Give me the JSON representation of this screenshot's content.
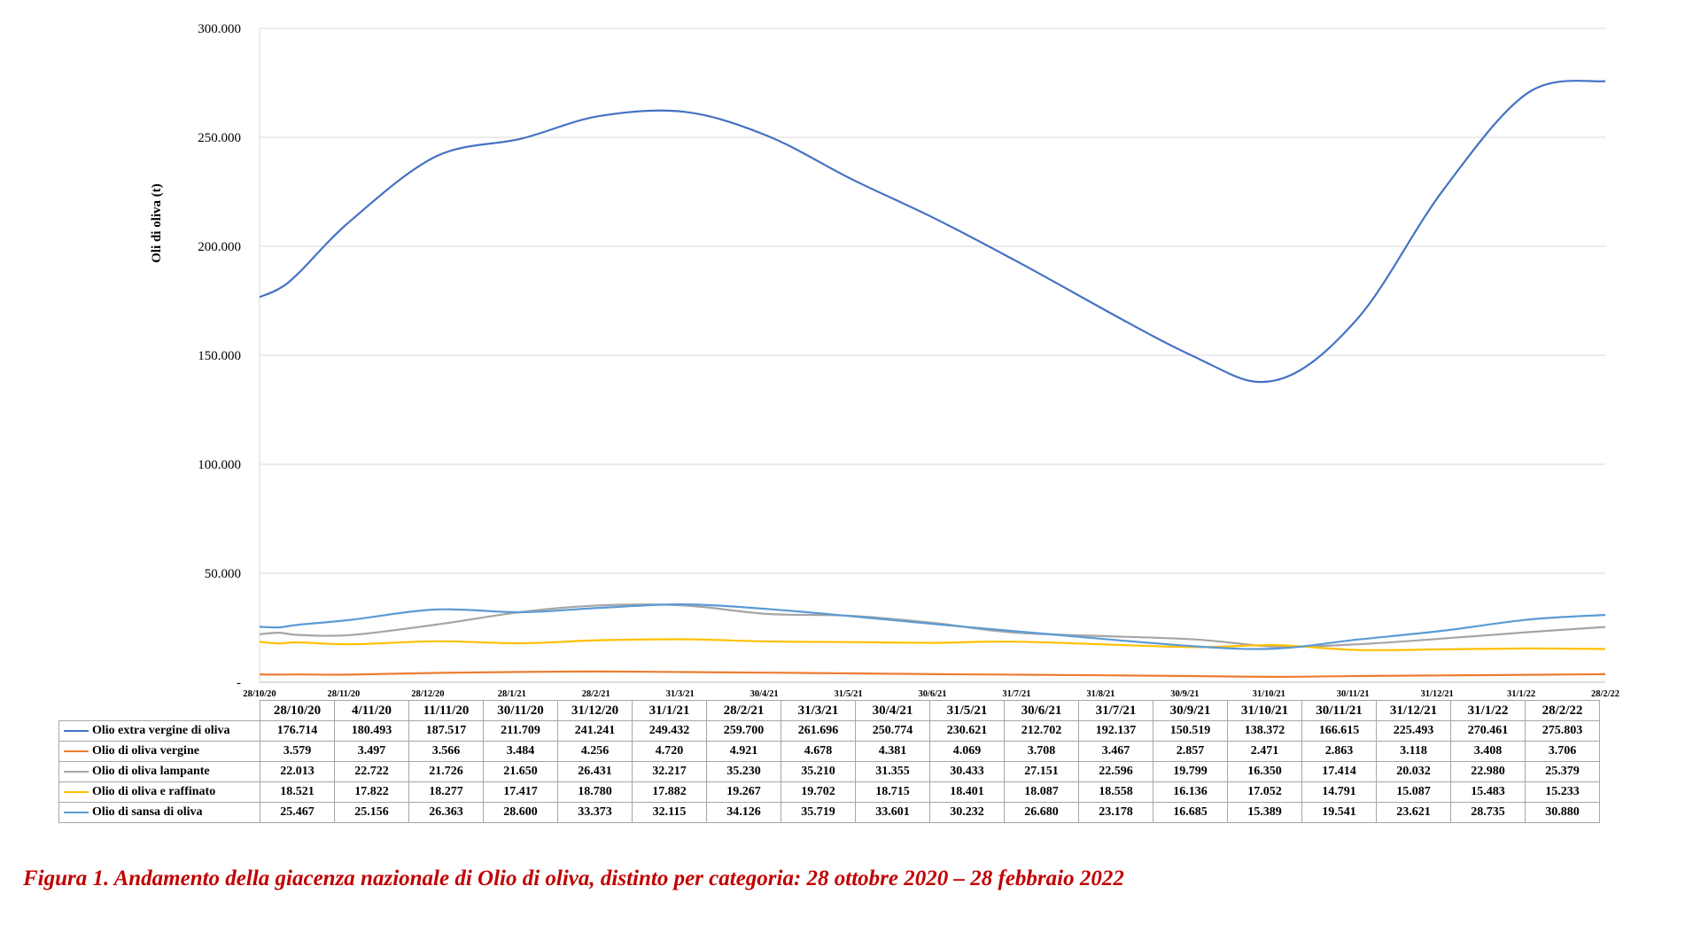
{
  "chart_data": {
    "type": "line",
    "ylabel": "Oli di oliva (t)",
    "ylim": [
      0,
      300000
    ],
    "yticks": [
      "-",
      "50.000",
      "100.000",
      "150.000",
      "200.000",
      "250.000",
      "300.000"
    ],
    "grid": true,
    "xaxis_ticks": [
      "28/10/20",
      "28/11/20",
      "28/12/20",
      "28/1/21",
      "28/2/21",
      "31/3/21",
      "30/4/21",
      "31/5/21",
      "30/6/21",
      "31/7/21",
      "31/8/21",
      "30/9/21",
      "31/10/21",
      "30/11/21",
      "31/12/21",
      "31/1/22",
      "28/2/22"
    ],
    "categories": [
      "28/10/20",
      "4/11/20",
      "11/11/20",
      "30/11/20",
      "31/12/20",
      "31/1/21",
      "28/2/21",
      "31/3/21",
      "30/4/21",
      "31/5/21",
      "30/6/21",
      "31/7/21",
      "30/9/21",
      "31/10/21",
      "30/11/21",
      "31/12/21",
      "31/1/22",
      "28/2/22"
    ],
    "dates": [
      "2020-10-28",
      "2020-11-04",
      "2020-11-11",
      "2020-11-30",
      "2020-12-31",
      "2021-01-31",
      "2021-02-28",
      "2021-03-31",
      "2021-04-30",
      "2021-05-31",
      "2021-06-30",
      "2021-07-31",
      "2021-09-30",
      "2021-10-31",
      "2021-11-30",
      "2021-12-31",
      "2022-01-31",
      "2022-02-28"
    ],
    "series": [
      {
        "name": "Olio extra vergine di oliva",
        "color": "#4472c4",
        "values": [
          176714,
          180493,
          187517,
          211709,
          241241,
          249432,
          259700,
          261696,
          250774,
          230621,
          212702,
          192137,
          150519,
          138372,
          166615,
          225493,
          270461,
          275803
        ],
        "labels": [
          "176.714",
          "180.493",
          "187.517",
          "211.709",
          "241.241",
          "249.432",
          "259.700",
          "261.696",
          "250.774",
          "230.621",
          "212.702",
          "192.137",
          "150.519",
          "138.372",
          "166.615",
          "225.493",
          "270.461",
          "275.803"
        ]
      },
      {
        "name": "Olio di oliva vergine",
        "color": "#ed7d31",
        "values": [
          3579,
          3497,
          3566,
          3484,
          4256,
          4720,
          4921,
          4678,
          4381,
          4069,
          3708,
          3467,
          2857,
          2471,
          2863,
          3118,
          3408,
          3706
        ],
        "labels": [
          "3.579",
          "3.497",
          "3.566",
          "3.484",
          "4.256",
          "4.720",
          "4.921",
          "4.678",
          "4.381",
          "4.069",
          "3.708",
          "3.467",
          "2.857",
          "2.471",
          "2.863",
          "3.118",
          "3.408",
          "3.706"
        ]
      },
      {
        "name": "Olio di oliva lampante",
        "color": "#a5a5a5",
        "values": [
          22013,
          22722,
          21726,
          21650,
          26431,
          32217,
          35230,
          35210,
          31355,
          30433,
          27151,
          22596,
          19799,
          16350,
          17414,
          20032,
          22980,
          25379
        ],
        "labels": [
          "22.013",
          "22.722",
          "21.726",
          "21.650",
          "26.431",
          "32.217",
          "35.230",
          "35.210",
          "31.355",
          "30.433",
          "27.151",
          "22.596",
          "19.799",
          "16.350",
          "17.414",
          "20.032",
          "22.980",
          "25.379"
        ]
      },
      {
        "name": "Olio di oliva e raffinato",
        "color": "#ffc000",
        "values": [
          18521,
          17822,
          18277,
          17417,
          18780,
          17882,
          19267,
          19702,
          18715,
          18401,
          18087,
          18558,
          16136,
          17052,
          14791,
          15087,
          15483,
          15233
        ],
        "labels": [
          "18.521",
          "17.822",
          "18.277",
          "17.417",
          "18.780",
          "17.882",
          "19.267",
          "19.702",
          "18.715",
          "18.401",
          "18.087",
          "18.558",
          "16.136",
          "17.052",
          "14.791",
          "15.087",
          "15.483",
          "15.233"
        ]
      },
      {
        "name": "Olio di sansa di oliva",
        "color": "#5b9bd5",
        "values": [
          25467,
          25156,
          26363,
          28600,
          33373,
          32115,
          34126,
          35719,
          33601,
          30232,
          26680,
          23178,
          16685,
          15389,
          19541,
          23621,
          28735,
          30880
        ],
        "labels": [
          "25.467",
          "25.156",
          "26.363",
          "28.600",
          "33.373",
          "32.115",
          "34.126",
          "35.719",
          "33.601",
          "30.232",
          "26.680",
          "23.178",
          "16.685",
          "15.389",
          "19.541",
          "23.621",
          "28.735",
          "30.880"
        ]
      }
    ]
  },
  "caption": "Figura 1. Andamento della giacenza nazionale di Olio di oliva, distinto per categoria: 28 ottobre 2020 – 28 febbraio 2022"
}
